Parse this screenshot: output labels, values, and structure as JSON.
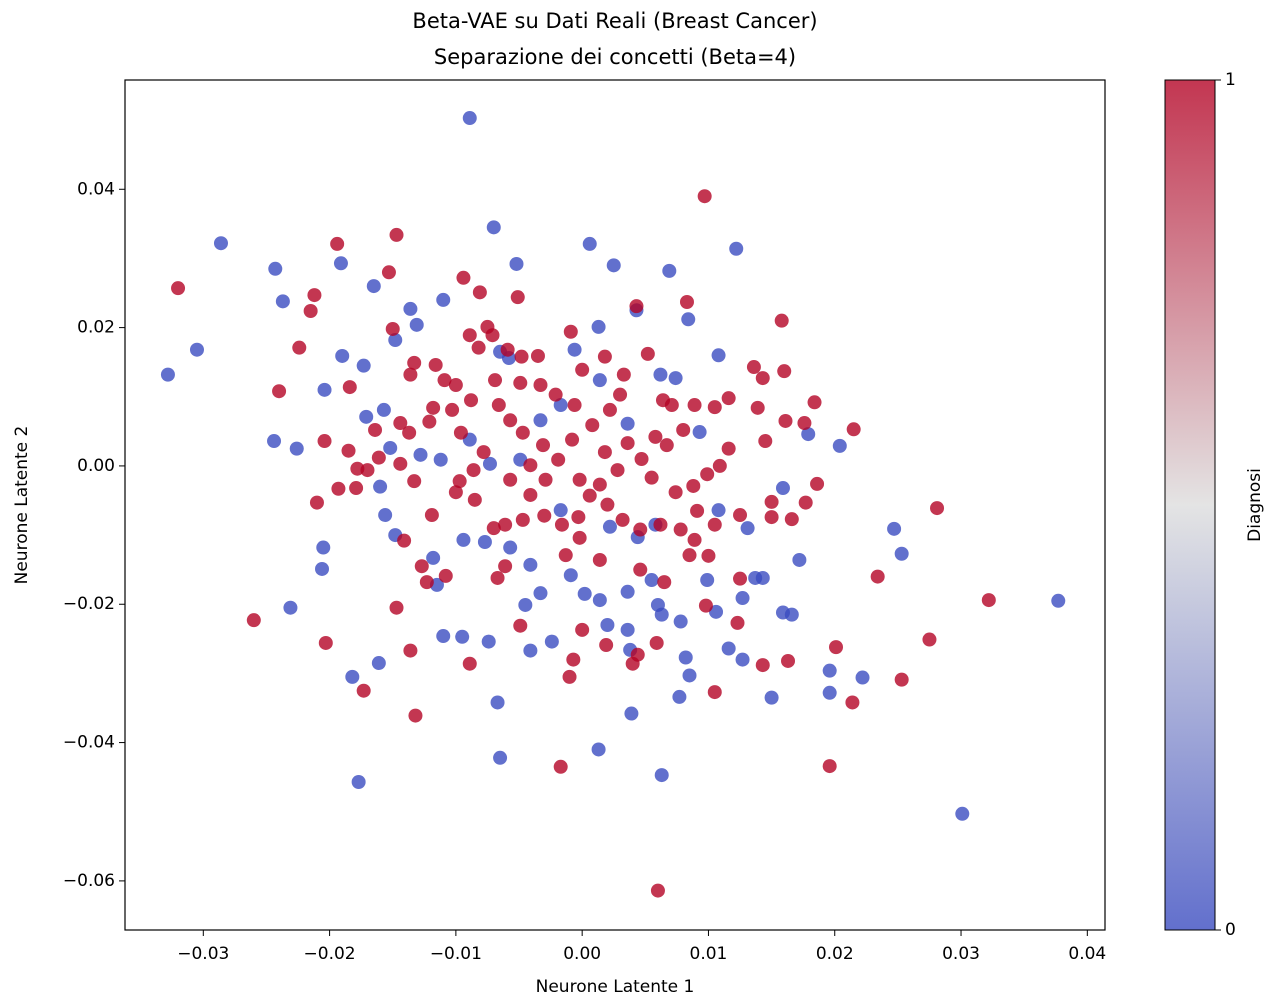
{
  "chart_data": {
    "type": "scatter",
    "title": "Beta-VAE su Dati Reali (Breast Cancer)",
    "subtitle": "Separazione dei concetti (Beta=4)",
    "x_label": "Neurone Latente 1",
    "y_label": "Neurone Latente 2",
    "xlim": [
      -0.0362,
      0.0414
    ],
    "ylim": [
      -0.0671,
      0.0558
    ],
    "xticks": [
      {
        "value": -0.03,
        "label": "−0.03"
      },
      {
        "value": -0.02,
        "label": "−0.02"
      },
      {
        "value": -0.01,
        "label": "−0.01"
      },
      {
        "value": 0,
        "label": "0.00"
      },
      0.01,
      0.02,
      0.03,
      0.04
    ],
    "yticks": [
      {
        "value": -0.06,
        "label": "−0.06"
      },
      {
        "value": -0.04,
        "label": "−0.04"
      },
      {
        "value": -0.02,
        "label": "−0.02"
      },
      {
        "value": 0,
        "label": "0.00"
      },
      0.02,
      0.04
    ],
    "colormap": [
      "#3b4cc0",
      "#dddddd",
      "#b40426"
    ],
    "clim": [
      0,
      1
    ],
    "cticks": [
      0,
      1
    ],
    "colorbar_label": "Diagnosi",
    "series": [
      {
        "color_value": 0,
        "x": [
          -0.0089,
          -0.0328,
          -0.0305,
          -0.0286,
          -0.0243,
          -0.0237,
          -0.0244,
          -0.0231,
          -0.0205,
          -0.0206,
          -0.0182,
          -0.0177,
          -0.0161,
          -0.007,
          -0.0052,
          0.0006,
          0.0025,
          0.0069,
          0.0122,
          -0.0067,
          -0.0065,
          0.0013,
          0.0063,
          0.0039,
          0.0301,
          0.0377,
          0.0247,
          0.0253,
          0.0222,
          0.0196,
          0.0196,
          0.0204,
          0.0179,
          0.015,
          0.0166,
          0.0085,
          0.0077,
          0.0108,
          -0.011,
          -0.0136,
          -0.0165,
          -0.0191,
          -0.019,
          -0.0173,
          -0.0204,
          -0.0226,
          -0.0095,
          -0.011,
          -0.0074,
          -0.0041,
          -0.0024,
          0.002,
          0.0036,
          0.0055,
          0.0099,
          0.0137,
          0.0159,
          0.0143,
          0.0172,
          0.0159,
          0.0131,
          0.0108,
          0.0093,
          0.0062,
          0.0074,
          0.0036,
          -0.0006,
          0.0014,
          -0.0017,
          -0.0033,
          -0.0049,
          -0.0073,
          -0.0089,
          -0.0112,
          -0.0128,
          -0.0152,
          -0.016,
          -0.0156,
          -0.0148,
          -0.0118,
          -0.0115,
          -0.0094,
          -0.0077,
          -0.0057,
          -0.0041,
          -0.0033,
          -0.0045,
          -0.0009,
          0.0002,
          0.0014,
          -0.0017,
          0.0022,
          0.0044,
          0.0058,
          0.006,
          0.0063,
          0.0078,
          0.0082,
          0.0036,
          0.0038,
          0.0116,
          0.0127,
          0.0127,
          0.0106,
          -0.0171,
          -0.0157,
          -0.0131,
          -0.0148,
          0.0043,
          0.0013,
          0.0084,
          -0.0058,
          -0.0065
        ],
        "values": [
          0.0503,
          0.0132,
          0.0168,
          0.0322,
          0.0285,
          0.0238,
          0.0036,
          -0.0205,
          -0.0118,
          -0.0149,
          -0.0305,
          -0.0457,
          -0.0285,
          0.0345,
          0.0292,
          0.0321,
          0.029,
          0.0282,
          0.0314,
          -0.0342,
          -0.0422,
          -0.041,
          -0.0447,
          -0.0358,
          -0.0503,
          -0.0195,
          -0.0091,
          -0.0127,
          -0.0306,
          -0.0296,
          -0.0328,
          0.0029,
          0.0046,
          -0.0335,
          -0.0215,
          -0.0303,
          -0.0334,
          0.016,
          0.024,
          0.0227,
          0.026,
          0.0293,
          0.0159,
          0.0145,
          0.011,
          0.0025,
          -0.0247,
          -0.0246,
          -0.0254,
          -0.0267,
          -0.0254,
          -0.023,
          -0.0182,
          -0.0165,
          -0.0165,
          -0.0162,
          -0.0212,
          -0.0162,
          -0.0136,
          -0.0032,
          -0.009,
          -0.0064,
          0.0049,
          0.0132,
          0.0127,
          0.0061,
          0.0168,
          0.0124,
          0.0088,
          0.0066,
          0.0009,
          0.0003,
          0.0038,
          0.0009,
          0.0016,
          0.0026,
          -0.003,
          -0.0071,
          -0.01,
          -0.0133,
          -0.0172,
          -0.0107,
          -0.011,
          -0.0118,
          -0.0143,
          -0.0184,
          -0.0201,
          -0.0158,
          -0.0185,
          -0.0194,
          -0.0064,
          -0.0088,
          -0.0103,
          -0.0085,
          -0.0201,
          -0.0215,
          -0.0225,
          -0.0277,
          -0.0237,
          -0.0266,
          -0.0264,
          -0.028,
          -0.0191,
          -0.0211,
          0.0071,
          0.0081,
          0.0204,
          0.0182,
          0.0225,
          0.0201,
          0.0212,
          0.0156,
          0.0165
        ]
      },
      {
        "color_value": 1,
        "x": [
          -0.032,
          -0.026,
          -0.024,
          -0.0224,
          -0.0212,
          -0.0215,
          -0.021,
          -0.0203,
          -0.0194,
          -0.0153,
          -0.0147,
          -0.0184,
          -0.0173,
          -0.0132,
          -0.0136,
          -0.0147,
          -0.0141,
          -0.0094,
          -0.0081,
          -0.0051,
          -0.0089,
          -0.0017,
          -0.001,
          -0.0007,
          0.0043,
          0.0097,
          0.0083,
          0.0158,
          0.016,
          0.0136,
          0.0143,
          0.0139,
          0.0145,
          0.0161,
          0.0176,
          0.0184,
          0.0215,
          0.0186,
          0.0177,
          0.015,
          0.015,
          0.0166,
          0.0234,
          0.0281,
          0.0322,
          0.0253,
          0.0275,
          0.0201,
          0.0214,
          0.0196,
          0.006,
          0.0105,
          0.0143,
          0.0163,
          0.0123,
          0.0098,
          0.0125,
          0.01,
          0.0065,
          0.0059,
          0.004,
          0.0044,
          0.0019,
          0.0,
          -0.0049,
          -0.0061,
          -0.0067,
          -0.0108,
          -0.0127,
          -0.0123,
          -0.0119,
          -0.01,
          -0.0133,
          -0.0161,
          -0.0178,
          -0.0185,
          -0.0204,
          -0.0193,
          -0.0179,
          -0.017,
          -0.0137,
          -0.0144,
          -0.0121,
          -0.0118,
          -0.0109,
          -0.0116,
          -0.015,
          -0.0133,
          -0.0089,
          -0.0082,
          -0.0071,
          -0.0075,
          -0.0059,
          -0.0048,
          -0.0035,
          -0.0009,
          0.0,
          0.0018,
          0.0033,
          0.0052,
          0.0064,
          0.0071,
          0.0089,
          0.0105,
          0.0116,
          0.0116,
          0.0109,
          0.0099,
          0.0088,
          0.0074,
          0.0091,
          0.0078,
          0.0062,
          0.0046,
          0.0032,
          0.002,
          0.0006,
          -0.0003,
          -0.0016,
          -0.003,
          -0.0047,
          -0.0061,
          -0.007,
          -0.0085,
          -0.0097,
          -0.0086,
          -0.0078,
          -0.0096,
          -0.0103,
          -0.0088,
          -0.0066,
          -0.0057,
          -0.0047,
          -0.0031,
          -0.0019,
          -0.0008,
          0.0008,
          0.0018,
          0.0028,
          0.0036,
          0.0047,
          0.0055,
          0.0058,
          0.0067,
          0.008,
          0.0014,
          -0.0002,
          -0.0029,
          -0.0041,
          -0.0057,
          -0.0041,
          -0.0021,
          -0.0006,
          0.0022,
          0.003,
          -0.0033,
          -0.0049,
          -0.0069,
          -0.01,
          -0.0136,
          -0.0144,
          -0.0164,
          0.0046,
          0.0014,
          -0.0013,
          -0.0002,
          0.0089,
          0.0105,
          0.0125,
          0.0085
        ],
        "values": [
          0.0257,
          -0.0223,
          0.0108,
          0.0171,
          0.0247,
          0.0224,
          -0.0053,
          -0.0256,
          0.0321,
          0.028,
          0.0334,
          0.0114,
          -0.0325,
          -0.0361,
          -0.0267,
          -0.0205,
          -0.0108,
          0.0272,
          0.0251,
          0.0244,
          -0.0286,
          -0.0435,
          -0.0305,
          -0.028,
          0.0231,
          0.039,
          0.0237,
          0.021,
          0.0137,
          0.0143,
          0.0127,
          0.0084,
          0.0036,
          0.0065,
          0.0062,
          0.0092,
          0.0053,
          -0.0026,
          -0.0053,
          -0.0052,
          -0.0074,
          -0.0077,
          -0.016,
          -0.0061,
          -0.0194,
          -0.0309,
          -0.0251,
          -0.0262,
          -0.0342,
          -0.0434,
          -0.0614,
          -0.0327,
          -0.0288,
          -0.0282,
          -0.0227,
          -0.0202,
          -0.0163,
          -0.013,
          -0.0168,
          -0.0256,
          -0.0286,
          -0.0273,
          -0.0259,
          -0.0237,
          -0.0231,
          -0.0145,
          -0.0162,
          -0.0159,
          -0.0145,
          -0.0168,
          -0.0071,
          -0.0038,
          -0.0022,
          0.0012,
          -0.0004,
          0.0022,
          0.0036,
          -0.0033,
          -0.0032,
          -0.0006,
          0.0048,
          0.0062,
          0.0064,
          0.0084,
          0.0124,
          0.0146,
          0.0198,
          0.0149,
          0.0189,
          0.0171,
          0.0189,
          0.0201,
          0.0168,
          0.0158,
          0.0159,
          0.0194,
          0.0139,
          0.0158,
          0.0132,
          0.0162,
          0.0095,
          0.0088,
          0.0088,
          0.0085,
          0.0098,
          0.0025,
          0.0,
          -0.0012,
          -0.0029,
          -0.0038,
          -0.0065,
          -0.0092,
          -0.0085,
          -0.0092,
          -0.0078,
          -0.0056,
          -0.0043,
          -0.0074,
          -0.0085,
          -0.0072,
          -0.0078,
          -0.0085,
          -0.009,
          -0.0049,
          -0.0022,
          -0.0006,
          0.002,
          0.0048,
          0.0081,
          0.0095,
          0.0088,
          0.0066,
          0.0048,
          0.003,
          0.0009,
          0.0038,
          0.0059,
          0.002,
          -0.0006,
          0.0033,
          0.001,
          -0.0017,
          0.0042,
          0.003,
          0.0052,
          -0.0027,
          -0.002,
          -0.002,
          -0.0042,
          -0.002,
          0.0001,
          0.0103,
          0.0088,
          0.0081,
          0.0103,
          0.0117,
          0.012,
          0.0124,
          0.0117,
          0.0132,
          0.0003,
          0.0052,
          -0.015,
          -0.0136,
          -0.0129,
          -0.0104,
          -0.0107,
          -0.0085,
          -0.0071,
          -0.0129
        ]
      }
    ]
  }
}
